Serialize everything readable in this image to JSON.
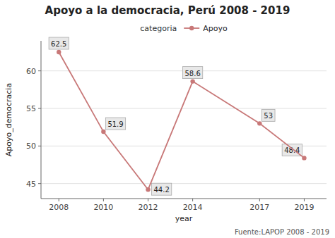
{
  "chart_data": {
    "type": "line",
    "title": "Apoyo a la democracia, Perú 2008 - 2019",
    "x_label": "year",
    "y_label": "Apoyo_democracia",
    "legend_title": "categoria",
    "source": "Fuente:LAPOP 2008 - 2019",
    "x": [
      2008,
      2010,
      2012,
      2014,
      2017,
      2019
    ],
    "series": [
      {
        "name": "Apoyo",
        "color": "#c87878",
        "marker": "circle",
        "values": [
          62.5,
          51.9,
          44.2,
          58.6,
          53,
          48.4
        ]
      }
    ],
    "xlim": [
      2007.2,
      2020
    ],
    "xticks": [
      2008,
      2010,
      2012,
      2014,
      2017,
      2019
    ],
    "ylim": [
      43,
      64
    ],
    "yticks": [
      45,
      50,
      55,
      60
    ],
    "grid": true,
    "legend": "top",
    "data_labels": true
  }
}
